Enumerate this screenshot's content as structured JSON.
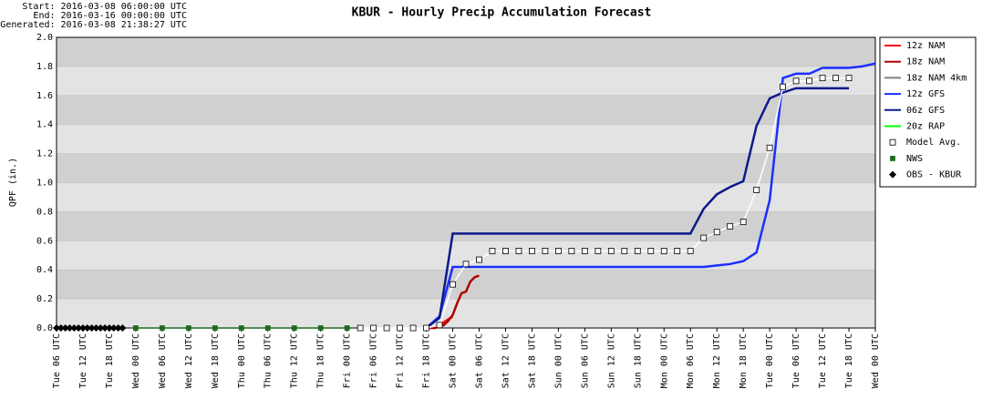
{
  "chart_data": {
    "type": "line",
    "title": "KBUR - Hourly Precip Accumulation Forecast",
    "header": [
      "Start: 2016-03-08 06:00:00 UTC",
      "End: 2016-03-16 00:00:00 UTC",
      "Generated: 2016-03-08 21:38:27 UTC"
    ],
    "y_label": "QPF (in.)",
    "xlim": [
      0,
      186
    ],
    "xticks": [
      {
        "value": 0,
        "label": "Tue 06 UTC"
      },
      {
        "value": 6,
        "label": "Tue 12 UTC"
      },
      {
        "value": 12,
        "label": "Tue 18 UTC"
      },
      {
        "value": 18,
        "label": "Wed 00 UTC"
      },
      {
        "value": 24,
        "label": "Wed 06 UTC"
      },
      {
        "value": 30,
        "label": "Wed 12 UTC"
      },
      {
        "value": 36,
        "label": "Wed 18 UTC"
      },
      {
        "value": 42,
        "label": "Thu 00 UTC"
      },
      {
        "value": 48,
        "label": "Thu 06 UTC"
      },
      {
        "value": 54,
        "label": "Thu 12 UTC"
      },
      {
        "value": 60,
        "label": "Thu 18 UTC"
      },
      {
        "value": 66,
        "label": "Fri 00 UTC"
      },
      {
        "value": 72,
        "label": "Fri 06 UTC"
      },
      {
        "value": 78,
        "label": "Fri 12 UTC"
      },
      {
        "value": 84,
        "label": "Fri 18 UTC"
      },
      {
        "value": 90,
        "label": "Sat 00 UTC"
      },
      {
        "value": 96,
        "label": "Sat 06 UTC"
      },
      {
        "value": 102,
        "label": "Sat 12 UTC"
      },
      {
        "value": 108,
        "label": "Sat 18 UTC"
      },
      {
        "value": 114,
        "label": "Sun 00 UTC"
      },
      {
        "value": 120,
        "label": "Sun 06 UTC"
      },
      {
        "value": 126,
        "label": "Sun 12 UTC"
      },
      {
        "value": 132,
        "label": "Sun 18 UTC"
      },
      {
        "value": 138,
        "label": "Mon 00 UTC"
      },
      {
        "value": 144,
        "label": "Mon 06 UTC"
      },
      {
        "value": 150,
        "label": "Mon 12 UTC"
      },
      {
        "value": 156,
        "label": "Mon 18 UTC"
      },
      {
        "value": 162,
        "label": "Tue 00 UTC"
      },
      {
        "value": 168,
        "label": "Tue 06 UTC"
      },
      {
        "value": 174,
        "label": "Tue 12 UTC"
      },
      {
        "value": 180,
        "label": "Tue 18 UTC"
      },
      {
        "value": 186,
        "label": "Wed 00 UTC"
      }
    ],
    "ylim": [
      0,
      2
    ],
    "yticks": [
      {
        "value": 0,
        "label": "0.0"
      },
      0.2,
      0.4,
      0.6,
      0.8,
      {
        "value": 1,
        "label": "1.0"
      },
      1.2,
      1.4,
      1.6,
      1.8,
      {
        "value": 2,
        "label": "2.0"
      }
    ],
    "series": [
      {
        "name": "12z NAM",
        "color": "#ff0000",
        "x": [
          84,
          85,
          86,
          87,
          88,
          89,
          90
        ],
        "values": [
          0,
          0,
          0.01,
          0.02,
          0.04,
          0.06,
          0.08
        ]
      },
      {
        "name": "18z NAM",
        "color": "#b00000",
        "x": [
          85,
          86,
          87,
          88,
          89,
          90,
          91,
          92,
          93,
          94,
          95,
          96
        ],
        "values": [
          0,
          0,
          0.01,
          0.02,
          0.05,
          0.09,
          0.17,
          0.24,
          0.25,
          0.32,
          0.35,
          0.36
        ]
      },
      {
        "name": "18z NAM 4km",
        "color": "#808080",
        "x": [],
        "values": []
      },
      {
        "name": "12z GFS",
        "color": "#1a2eff",
        "x": [
          84,
          87,
          90,
          93,
          96,
          99,
          102,
          105,
          108,
          111,
          114,
          117,
          120,
          123,
          126,
          129,
          132,
          135,
          138,
          141,
          144,
          147,
          150,
          153,
          156,
          159,
          162,
          165,
          168,
          171,
          174,
          177,
          180,
          183,
          186
        ],
        "values": [
          0,
          0.08,
          0.42,
          0.42,
          0.42,
          0.42,
          0.42,
          0.42,
          0.42,
          0.42,
          0.42,
          0.42,
          0.42,
          0.42,
          0.42,
          0.42,
          0.42,
          0.42,
          0.42,
          0.42,
          0.42,
          0.42,
          0.43,
          0.44,
          0.46,
          0.52,
          0.88,
          1.72,
          1.75,
          1.75,
          1.79,
          1.79,
          1.79,
          1.8,
          1.82
        ]
      },
      {
        "name": "06z GFS",
        "color": "#0c1a8a",
        "x": [
          84,
          87,
          90,
          93,
          96,
          99,
          102,
          105,
          108,
          111,
          114,
          117,
          120,
          123,
          126,
          129,
          132,
          135,
          138,
          141,
          144,
          147,
          150,
          153,
          156,
          159,
          162,
          165,
          168,
          171,
          174,
          177,
          180
        ],
        "values": [
          0,
          0.07,
          0.65,
          0.65,
          0.65,
          0.65,
          0.65,
          0.65,
          0.65,
          0.65,
          0.65,
          0.65,
          0.65,
          0.65,
          0.65,
          0.65,
          0.65,
          0.65,
          0.65,
          0.65,
          0.65,
          0.82,
          0.92,
          0.97,
          1.01,
          1.39,
          1.58,
          1.62,
          1.65,
          1.65,
          1.65,
          1.65,
          1.65
        ]
      },
      {
        "name": "20z RAP",
        "color": "#00ff00",
        "x": [],
        "values": []
      },
      {
        "name": "Model Avg.",
        "color": "#ffffff",
        "marker": "square",
        "x": [
          69,
          72,
          75,
          78,
          81,
          84,
          87,
          90,
          93,
          96,
          99,
          102,
          105,
          108,
          111,
          114,
          117,
          120,
          123,
          126,
          129,
          132,
          135,
          138,
          141,
          144,
          147,
          150,
          153,
          156,
          159,
          162,
          165,
          168,
          171,
          174,
          177,
          180
        ],
        "values": [
          0,
          0,
          0,
          0,
          0,
          0,
          0.02,
          0.3,
          0.44,
          0.47,
          0.53,
          0.53,
          0.53,
          0.53,
          0.53,
          0.53,
          0.53,
          0.53,
          0.53,
          0.53,
          0.53,
          0.53,
          0.53,
          0.53,
          0.53,
          0.53,
          0.62,
          0.66,
          0.7,
          0.73,
          0.95,
          1.24,
          1.66,
          1.7,
          1.7,
          1.72,
          1.72,
          1.72
        ]
      },
      {
        "name": "NWS",
        "color": "#1e6b1e",
        "marker": "square-filled",
        "x": [
          18,
          24,
          30,
          36,
          42,
          48,
          54,
          60,
          66
        ],
        "values": [
          0,
          0,
          0,
          0,
          0,
          0,
          0,
          0,
          0
        ]
      },
      {
        "name": "OBS - KBUR",
        "color": "#000000",
        "marker": "diamond",
        "x": [
          0,
          1,
          2,
          3,
          4,
          5,
          6,
          7,
          8,
          9,
          10,
          11,
          12,
          13,
          14,
          15
        ],
        "values": [
          0,
          0,
          0,
          0,
          0,
          0,
          0,
          0,
          0,
          0,
          0,
          0,
          0,
          0,
          0,
          0
        ]
      }
    ]
  }
}
